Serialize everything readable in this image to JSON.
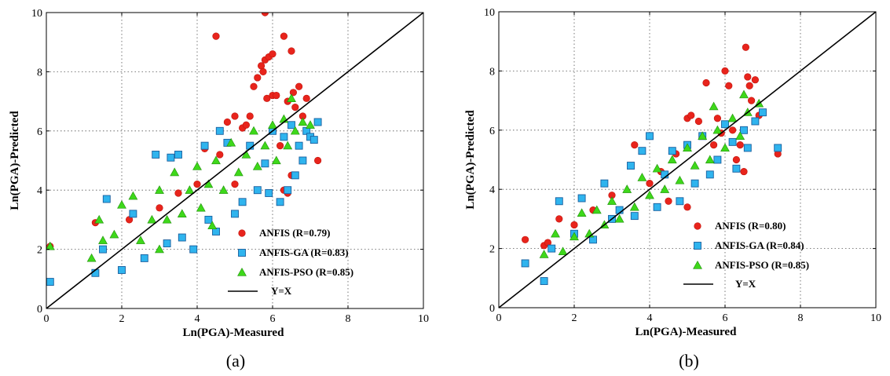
{
  "chart_data": [
    {
      "type": "scatter",
      "caption": "(a)",
      "xlabel": "Ln(PGA)-Measured",
      "ylabel": "Ln(PGA)-Predicted",
      "xlim": [
        0,
        10
      ],
      "ylim": [
        0,
        10
      ],
      "xticks": [
        0,
        2,
        4,
        6,
        8,
        10
      ],
      "yticks": [
        0,
        2,
        4,
        6,
        8,
        10
      ],
      "grid": true,
      "legend_position": "bottom-right",
      "reference_line": {
        "label": "Y=X",
        "color": "#000000",
        "points": [
          [
            0,
            0
          ],
          [
            10,
            10
          ]
        ]
      },
      "series": [
        {
          "name": "ANFIS (R=0.79)",
          "marker": "circle",
          "color": "#e8241c",
          "points": [
            [
              0.1,
              2.1
            ],
            [
              1.3,
              2.9
            ],
            [
              2.2,
              3.0
            ],
            [
              3.0,
              3.4
            ],
            [
              3.5,
              3.9
            ],
            [
              4.0,
              4.2
            ],
            [
              4.5,
              9.2
            ],
            [
              4.6,
              5.2
            ],
            [
              4.8,
              6.3
            ],
            [
              5.0,
              6.5
            ],
            [
              5.2,
              6.1
            ],
            [
              5.3,
              6.2
            ],
            [
              5.4,
              6.5
            ],
            [
              5.5,
              7.5
            ],
            [
              5.6,
              7.8
            ],
            [
              5.7,
              8.2
            ],
            [
              5.75,
              8.0
            ],
            [
              5.8,
              8.4
            ],
            [
              5.9,
              8.5
            ],
            [
              5.8,
              10.0
            ],
            [
              5.85,
              7.1
            ],
            [
              6.0,
              8.6
            ],
            [
              6.0,
              7.2
            ],
            [
              6.1,
              7.2
            ],
            [
              6.2,
              5.5
            ],
            [
              6.3,
              9.2
            ],
            [
              6.4,
              7.0
            ],
            [
              6.5,
              8.7
            ],
            [
              6.55,
              7.3
            ],
            [
              6.6,
              6.8
            ],
            [
              6.7,
              7.5
            ],
            [
              6.8,
              6.5
            ],
            [
              6.9,
              7.1
            ],
            [
              6.3,
              4.0
            ],
            [
              6.5,
              4.5
            ],
            [
              6.4,
              3.9
            ],
            [
              7.1,
              5.7
            ],
            [
              7.2,
              5.0
            ],
            [
              5.0,
              4.2
            ],
            [
              4.2,
              5.4
            ]
          ]
        },
        {
          "name": "ANFIS-GA (R=0.83)",
          "marker": "square",
          "color": "#2fb4ee",
          "points": [
            [
              0.1,
              0.9
            ],
            [
              1.3,
              1.2
            ],
            [
              1.5,
              2.0
            ],
            [
              1.6,
              3.7
            ],
            [
              2.0,
              1.3
            ],
            [
              2.3,
              3.2
            ],
            [
              2.6,
              1.7
            ],
            [
              2.9,
              5.2
            ],
            [
              3.2,
              2.2
            ],
            [
              3.3,
              5.1
            ],
            [
              3.5,
              5.2
            ],
            [
              3.6,
              2.4
            ],
            [
              3.9,
              2.0
            ],
            [
              4.2,
              5.5
            ],
            [
              4.3,
              3.0
            ],
            [
              4.5,
              2.6
            ],
            [
              4.6,
              6.0
            ],
            [
              4.8,
              5.6
            ],
            [
              5.0,
              3.2
            ],
            [
              5.2,
              3.6
            ],
            [
              5.4,
              5.5
            ],
            [
              5.6,
              4.0
            ],
            [
              5.8,
              4.9
            ],
            [
              5.9,
              3.9
            ],
            [
              6.0,
              6.0
            ],
            [
              6.2,
              3.6
            ],
            [
              6.3,
              5.8
            ],
            [
              6.4,
              4.0
            ],
            [
              6.5,
              6.2
            ],
            [
              6.6,
              4.5
            ],
            [
              6.7,
              5.5
            ],
            [
              6.8,
              5.0
            ],
            [
              6.9,
              6.0
            ],
            [
              7.0,
              5.8
            ],
            [
              7.1,
              5.7
            ],
            [
              7.2,
              6.3
            ]
          ]
        },
        {
          "name": "ANFIS-PSO (R=0.85)",
          "marker": "triangle",
          "color": "#3ed81a",
          "points": [
            [
              0.1,
              2.1
            ],
            [
              1.2,
              1.7
            ],
            [
              1.4,
              3.0
            ],
            [
              1.5,
              2.3
            ],
            [
              1.8,
              2.5
            ],
            [
              2.0,
              3.5
            ],
            [
              2.3,
              3.8
            ],
            [
              2.5,
              2.3
            ],
            [
              2.8,
              3.0
            ],
            [
              3.0,
              4.0
            ],
            [
              3.2,
              3.0
            ],
            [
              3.4,
              4.6
            ],
            [
              3.6,
              3.2
            ],
            [
              3.8,
              4.0
            ],
            [
              4.0,
              4.8
            ],
            [
              4.1,
              3.4
            ],
            [
              4.3,
              4.2
            ],
            [
              4.5,
              5.0
            ],
            [
              4.7,
              4.0
            ],
            [
              4.9,
              5.6
            ],
            [
              5.1,
              4.6
            ],
            [
              5.3,
              5.2
            ],
            [
              5.5,
              6.0
            ],
            [
              5.6,
              4.8
            ],
            [
              5.8,
              5.5
            ],
            [
              6.0,
              6.2
            ],
            [
              6.1,
              5.0
            ],
            [
              6.3,
              6.4
            ],
            [
              6.4,
              5.5
            ],
            [
              6.5,
              7.1
            ],
            [
              6.6,
              6.0
            ],
            [
              6.8,
              6.3
            ],
            [
              7.0,
              6.2
            ],
            [
              4.4,
              2.8
            ],
            [
              3.0,
              2.0
            ]
          ]
        }
      ]
    },
    {
      "type": "scatter",
      "caption": "(b)",
      "xlabel": "Ln(PGA)-Measured",
      "ylabel": "Ln(PGA)-Predicted",
      "xlim": [
        0,
        10
      ],
      "ylim": [
        0,
        10
      ],
      "xticks": [
        0,
        2,
        4,
        6,
        8,
        10
      ],
      "yticks": [
        0,
        2,
        4,
        6,
        8,
        10
      ],
      "grid": true,
      "legend_position": "bottom-right",
      "reference_line": {
        "label": "Y=X",
        "color": "#000000",
        "points": [
          [
            0,
            0
          ],
          [
            10,
            10
          ]
        ]
      },
      "series": [
        {
          "name": "ANFIS (R=0.80)",
          "marker": "circle",
          "color": "#e8241c",
          "points": [
            [
              0.7,
              2.3
            ],
            [
              1.2,
              2.1
            ],
            [
              1.3,
              2.2
            ],
            [
              1.6,
              3.0
            ],
            [
              2.0,
              2.8
            ],
            [
              2.5,
              3.3
            ],
            [
              3.0,
              3.8
            ],
            [
              3.6,
              5.5
            ],
            [
              4.0,
              4.2
            ],
            [
              4.3,
              4.6
            ],
            [
              4.7,
              5.2
            ],
            [
              5.0,
              6.4
            ],
            [
              5.1,
              6.5
            ],
            [
              5.3,
              6.3
            ],
            [
              5.5,
              7.6
            ],
            [
              5.7,
              5.5
            ],
            [
              5.8,
              6.4
            ],
            [
              5.9,
              5.9
            ],
            [
              6.0,
              8.0
            ],
            [
              6.1,
              7.5
            ],
            [
              6.2,
              6.0
            ],
            [
              6.3,
              5.0
            ],
            [
              6.4,
              5.5
            ],
            [
              6.5,
              4.6
            ],
            [
              6.55,
              8.8
            ],
            [
              6.6,
              7.8
            ],
            [
              6.65,
              7.5
            ],
            [
              6.7,
              7.0
            ],
            [
              6.8,
              7.7
            ],
            [
              6.9,
              6.5
            ],
            [
              7.4,
              5.2
            ],
            [
              5.0,
              3.4
            ],
            [
              4.5,
              3.6
            ]
          ]
        },
        {
          "name": "ANFIS-GA (R=0.84)",
          "marker": "square",
          "color": "#2fb4ee",
          "points": [
            [
              0.7,
              1.5
            ],
            [
              1.2,
              0.9
            ],
            [
              1.4,
              2.0
            ],
            [
              1.6,
              3.6
            ],
            [
              2.0,
              2.5
            ],
            [
              2.2,
              3.7
            ],
            [
              2.5,
              2.3
            ],
            [
              2.8,
              4.2
            ],
            [
              3.0,
              3.0
            ],
            [
              3.2,
              3.3
            ],
            [
              3.5,
              4.8
            ],
            [
              3.6,
              3.1
            ],
            [
              3.8,
              5.3
            ],
            [
              4.0,
              5.8
            ],
            [
              4.2,
              3.4
            ],
            [
              4.4,
              4.5
            ],
            [
              4.6,
              5.3
            ],
            [
              4.8,
              3.6
            ],
            [
              5.0,
              5.5
            ],
            [
              5.2,
              4.2
            ],
            [
              5.4,
              5.8
            ],
            [
              5.6,
              4.5
            ],
            [
              5.8,
              5.0
            ],
            [
              6.0,
              6.2
            ],
            [
              6.2,
              5.6
            ],
            [
              6.3,
              4.7
            ],
            [
              6.5,
              6.0
            ],
            [
              6.6,
              5.4
            ],
            [
              6.8,
              6.3
            ],
            [
              7.0,
              6.6
            ],
            [
              7.4,
              5.4
            ]
          ]
        },
        {
          "name": "ANFIS-PSO (R=0.85)",
          "marker": "triangle",
          "color": "#3ed81a",
          "points": [
            [
              1.2,
              1.8
            ],
            [
              1.5,
              2.5
            ],
            [
              1.7,
              1.9
            ],
            [
              2.0,
              2.4
            ],
            [
              2.2,
              3.2
            ],
            [
              2.4,
              2.5
            ],
            [
              2.6,
              3.3
            ],
            [
              2.8,
              2.8
            ],
            [
              3.0,
              3.6
            ],
            [
              3.2,
              3.0
            ],
            [
              3.4,
              4.0
            ],
            [
              3.6,
              3.4
            ],
            [
              3.8,
              4.4
            ],
            [
              4.0,
              3.8
            ],
            [
              4.2,
              4.7
            ],
            [
              4.4,
              4.0
            ],
            [
              4.6,
              5.0
            ],
            [
              4.8,
              4.3
            ],
            [
              5.0,
              5.4
            ],
            [
              5.2,
              4.8
            ],
            [
              5.4,
              5.8
            ],
            [
              5.6,
              5.0
            ],
            [
              5.8,
              6.0
            ],
            [
              6.0,
              5.4
            ],
            [
              6.2,
              6.4
            ],
            [
              6.4,
              5.8
            ],
            [
              6.5,
              7.2
            ],
            [
              6.6,
              6.6
            ],
            [
              6.9,
              6.9
            ],
            [
              5.7,
              6.8
            ]
          ]
        }
      ]
    }
  ]
}
